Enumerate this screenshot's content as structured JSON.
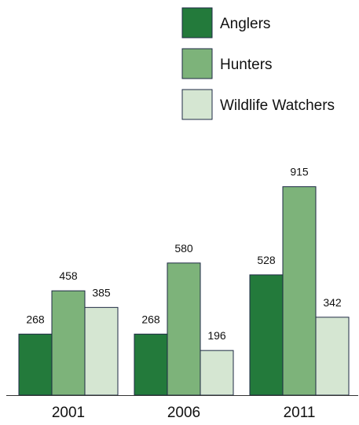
{
  "chart_data": {
    "type": "bar",
    "title": "",
    "xlabel": "",
    "ylabel": "",
    "categories": [
      "2001",
      "2006",
      "2011"
    ],
    "series": [
      {
        "name": "Anglers",
        "values": [
          268,
          268,
          528
        ],
        "color": "#237a3b"
      },
      {
        "name": "Hunters",
        "values": [
          458,
          580,
          915
        ],
        "color": "#7db37a"
      },
      {
        "name": "Wildlife Watchers",
        "values": [
          385,
          196,
          342
        ],
        "color": "#d5e6d2"
      }
    ],
    "ylim": [
      0,
      1000
    ],
    "grid": false,
    "legend": "top-right",
    "data_labels": true,
    "bar_outline_color": "#1e2a44"
  }
}
